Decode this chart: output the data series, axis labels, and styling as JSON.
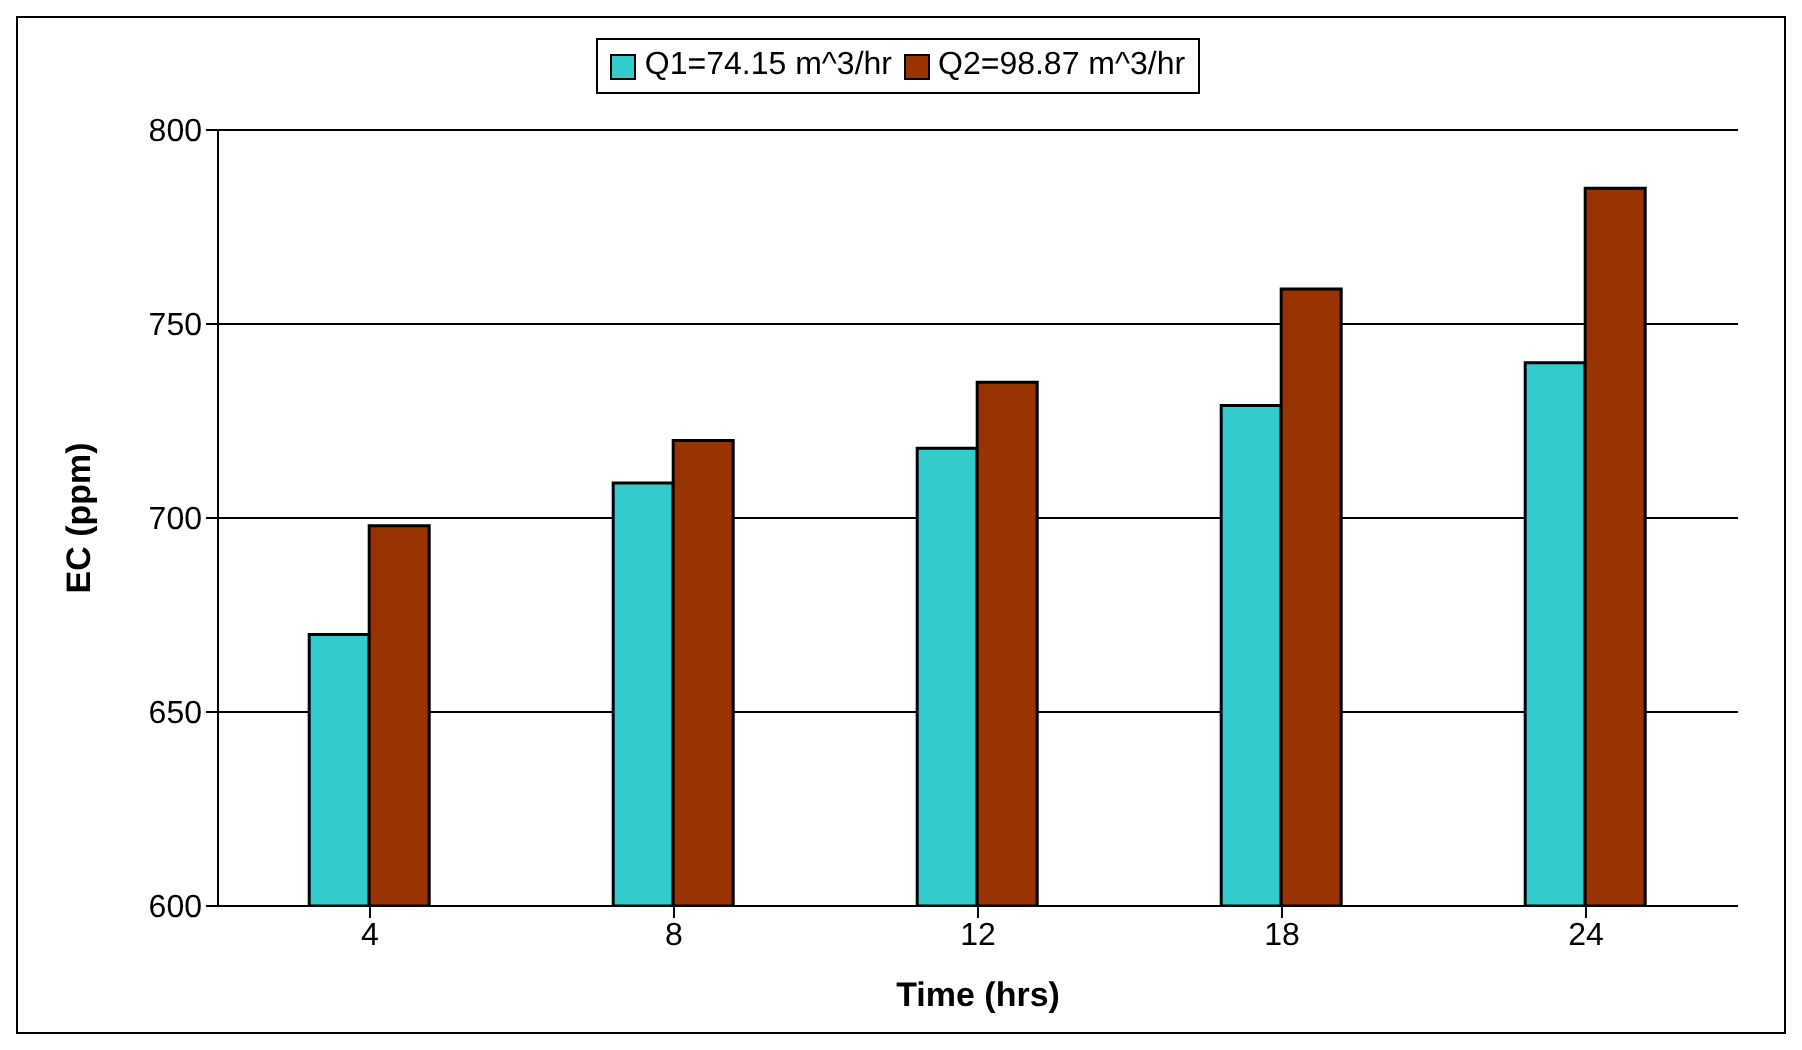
{
  "chart_data": {
    "type": "bar",
    "xlabel": "Time (hrs)",
    "ylabel": "EC (ppm)",
    "categories": [
      "4",
      "8",
      "12",
      "18",
      "24"
    ],
    "series": [
      {
        "name": "Q1=74.15 m^3/hr",
        "color": "#33cccc",
        "values": [
          670,
          709,
          718,
          729,
          740
        ]
      },
      {
        "name": "Q2=98.87 m^3/hr",
        "color": "#993300",
        "values": [
          698,
          720,
          735,
          759,
          785
        ]
      }
    ],
    "ylim": [
      600,
      800
    ],
    "yticks": [
      600,
      650,
      700,
      750,
      800
    ],
    "grid": "y",
    "legend": "top"
  }
}
